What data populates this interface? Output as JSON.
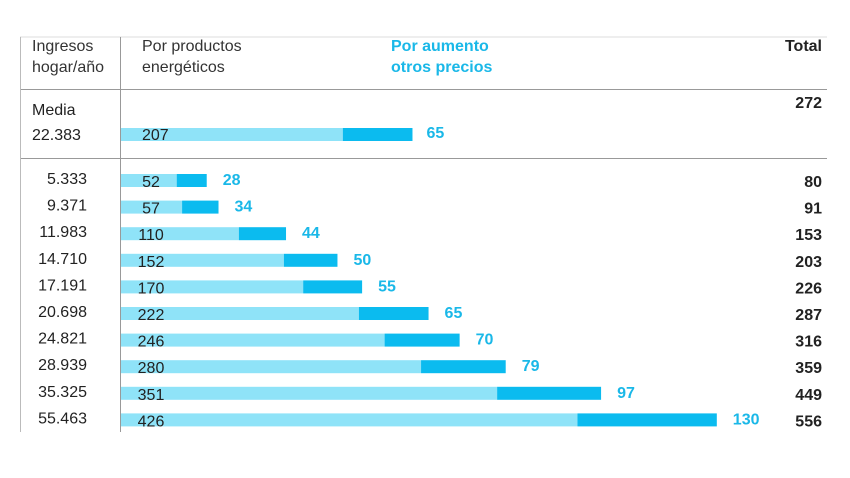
{
  "headers": {
    "income": [
      "Ingresos",
      "hogar/año"
    ],
    "energy": [
      "Por productos",
      "energéticos"
    ],
    "other": [
      "Por aumento",
      "otros precios"
    ],
    "total": "Total"
  },
  "colors": {
    "energy": "#8fe3f8",
    "other": "#0bbbef",
    "accent_text": "#1ab8e8",
    "rule": "#999999"
  },
  "chart_data": {
    "type": "bar",
    "stacked": true,
    "orientation": "horizontal",
    "series": [
      {
        "name": "Por productos energéticos",
        "color": "#8fe3f8"
      },
      {
        "name": "Por aumento otros precios",
        "color": "#0bbbef"
      }
    ],
    "media": {
      "label": "Media",
      "income": "22.383",
      "energy": 207,
      "other": 65,
      "total": 272
    },
    "rows": [
      {
        "income": "5.333",
        "energy": 52,
        "other": 28,
        "total": 80
      },
      {
        "income": "9.371",
        "energy": 57,
        "other": 34,
        "total": 91
      },
      {
        "income": "11.983",
        "energy": 110,
        "other": 44,
        "total": 153
      },
      {
        "income": "14.710",
        "energy": 152,
        "other": 50,
        "total": 203
      },
      {
        "income": "17.191",
        "energy": 170,
        "other": 55,
        "total": 226
      },
      {
        "income": "20.698",
        "energy": 222,
        "other": 65,
        "total": 287
      },
      {
        "income": "24.821",
        "energy": 246,
        "other": 70,
        "total": 316
      },
      {
        "income": "28.939",
        "energy": 280,
        "other": 79,
        "total": 359
      },
      {
        "income": "35.325",
        "energy": 351,
        "other": 97,
        "total": 449
      },
      {
        "income": "55.463",
        "energy": 426,
        "other": 130,
        "total": 556
      }
    ]
  }
}
